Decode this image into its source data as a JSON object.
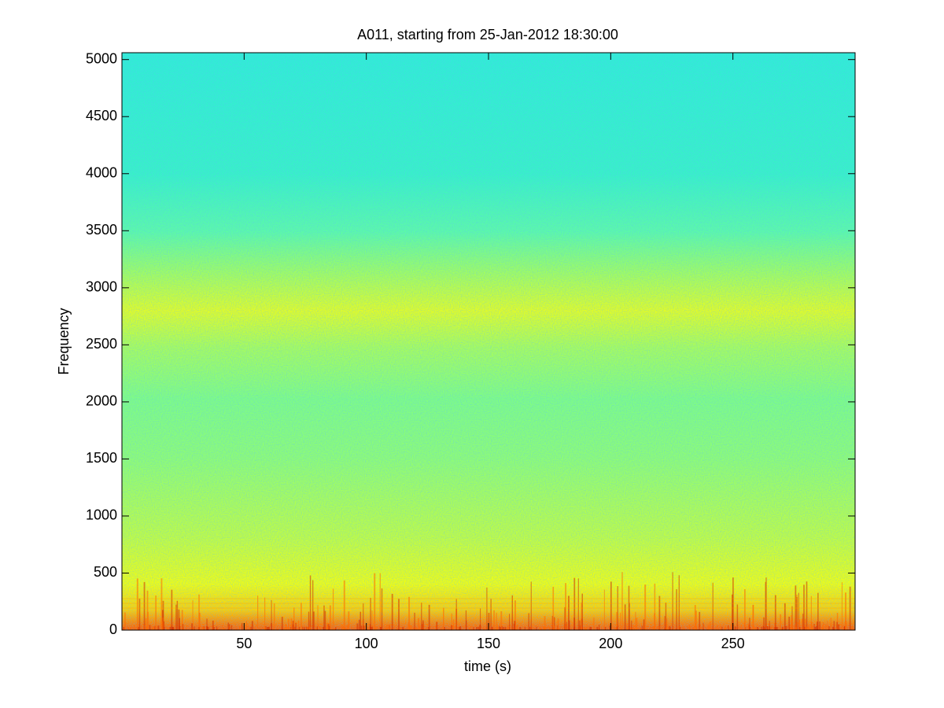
{
  "chart_data": {
    "type": "spectrogram",
    "title": "A011, starting from 25-Jan-2012 18:30:00",
    "x_label": "time (s)",
    "y_label": "Frequency",
    "xlim": [
      0,
      300
    ],
    "ylim": [
      0,
      5060
    ],
    "xticks": [
      50,
      100,
      150,
      200,
      250
    ],
    "yticks": [
      0,
      500,
      1000,
      1500,
      2000,
      2500,
      3000,
      3500,
      4000,
      4500,
      5000
    ]
  }
}
